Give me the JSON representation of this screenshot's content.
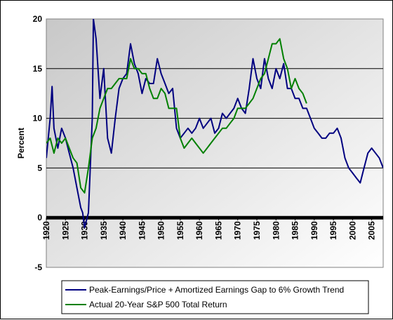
{
  "chart_data": {
    "type": "line",
    "title": "",
    "xlabel": "",
    "ylabel": "Percent",
    "xlim": [
      1920,
      2008
    ],
    "ylim": [
      -5,
      20
    ],
    "y_ticks": [
      "-5",
      "0",
      "5",
      "10",
      "15",
      "20"
    ],
    "x_ticks": [
      "1920",
      "1925",
      "1930",
      "1935",
      "1940",
      "1945",
      "1950",
      "1955",
      "1960",
      "1965",
      "1970",
      "1975",
      "1980",
      "1985",
      "1990",
      "1995",
      "2000",
      "2005"
    ],
    "grid": true,
    "legend_position": "bottom",
    "series": [
      {
        "name": "Peak-Earnings/Price + Amortized Earnings Gap to 6% Growth Trend",
        "color": "#000080",
        "x": [
          1920,
          1921,
          1921.5,
          1922,
          1923,
          1924,
          1925,
          1926,
          1927,
          1928,
          1929,
          1929.5,
          1930,
          1931,
          1932,
          1932.3,
          1933,
          1934,
          1935,
          1936,
          1937,
          1938,
          1939,
          1940,
          1941,
          1942,
          1943,
          1944,
          1945,
          1946,
          1947,
          1948,
          1949,
          1950,
          1951,
          1952,
          1953,
          1954,
          1955,
          1956,
          1957,
          1958,
          1959,
          1960,
          1961,
          1962,
          1963,
          1964,
          1965,
          1966,
          1967,
          1968,
          1969,
          1970,
          1971,
          1972,
          1973,
          1974,
          1975,
          1976,
          1977,
          1978,
          1979,
          1980,
          1981,
          1982,
          1983,
          1984,
          1985,
          1986,
          1987,
          1988,
          1989,
          1990,
          1991,
          1992,
          1993,
          1994,
          1995,
          1996,
          1997,
          1998,
          1999,
          2000,
          2001,
          2002,
          2003,
          2004,
          2005,
          2006,
          2007,
          2008
        ],
        "y": [
          6,
          10,
          13.2,
          9,
          7,
          9,
          8,
          6.5,
          5,
          3,
          1,
          0.5,
          -1,
          0.5,
          10,
          20,
          18,
          12,
          15,
          8,
          6.5,
          10,
          13,
          14,
          14.5,
          17.5,
          15.5,
          14.5,
          12.5,
          14,
          13.5,
          13.5,
          16,
          14.5,
          13.5,
          12.5,
          13,
          9,
          8,
          8.5,
          9,
          8.5,
          9,
          10,
          9,
          9.5,
          10,
          8.5,
          9,
          10.5,
          10,
          10.5,
          11,
          12,
          11,
          10.5,
          13,
          16,
          14,
          13,
          16,
          14,
          13,
          15,
          14,
          15.5,
          13,
          13,
          12,
          12,
          11,
          11,
          10,
          9,
          8.5,
          8,
          8,
          8.5,
          8.5,
          9,
          8,
          6,
          5,
          4.5,
          4,
          3.5,
          5,
          6.5,
          7,
          6.5,
          6,
          5
        ]
      },
      {
        "name": "Actual 20-Year S&P 500 Total Return",
        "color": "#008000",
        "x": [
          1920,
          1921,
          1922,
          1923,
          1924,
          1925,
          1926,
          1927,
          1928,
          1929,
          1930,
          1931,
          1932,
          1933,
          1934,
          1935,
          1936,
          1937,
          1938,
          1939,
          1940,
          1941,
          1942,
          1943,
          1944,
          1945,
          1946,
          1947,
          1948,
          1949,
          1950,
          1951,
          1952,
          1953,
          1954,
          1955,
          1956,
          1957,
          1958,
          1959,
          1960,
          1961,
          1962,
          1963,
          1964,
          1965,
          1966,
          1967,
          1968,
          1969,
          1970,
          1971,
          1972,
          1973,
          1974,
          1975,
          1976,
          1977,
          1978,
          1979,
          1980,
          1981,
          1982,
          1983,
          1984,
          1985,
          1986,
          1987,
          1988
        ],
        "y": [
          7.5,
          8,
          6.5,
          8,
          7.5,
          8,
          7,
          6,
          5.5,
          3,
          2.5,
          5,
          8,
          9,
          11,
          12,
          13,
          13,
          13.5,
          14,
          14,
          14,
          16,
          15,
          15,
          14.5,
          14.5,
          13,
          12,
          12,
          13,
          12.5,
          11,
          11,
          11,
          8,
          7,
          7.5,
          8,
          7.5,
          7,
          6.5,
          7,
          7.5,
          8,
          8.5,
          9,
          9,
          9.5,
          10,
          11,
          11,
          11,
          11.5,
          12,
          13,
          14,
          14.5,
          16,
          17.5,
          17.5,
          18,
          16,
          15,
          13,
          14,
          13,
          12.5,
          11.5
        ]
      }
    ]
  }
}
